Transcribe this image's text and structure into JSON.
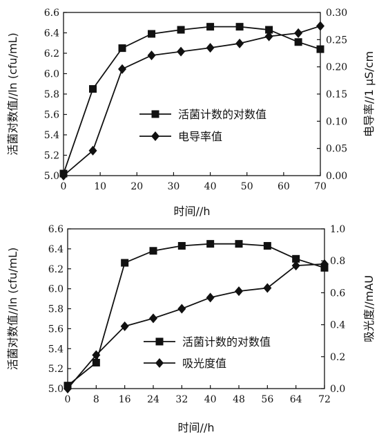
{
  "chart_data": [
    {
      "type": "line",
      "xlabel": "时间//h",
      "ylabel_left": "活菌对数值//ln (cfu/mL)",
      "ylabel_right": "电导率//1 μS/cm",
      "x_ticks": [
        0,
        10,
        20,
        30,
        40,
        50,
        60,
        70
      ],
      "y_left_ticks": [
        "5.0",
        "5.2",
        "5.4",
        "5.6",
        "5.8",
        "6.0",
        "6.2",
        "6.4",
        "6.6"
      ],
      "y_right_ticks": [
        "0.00",
        "0.05",
        "0.10",
        "0.15",
        "0.20",
        "0.25",
        "0.30"
      ],
      "xlim": [
        0,
        70
      ],
      "ylim_left": [
        5.0,
        6.6
      ],
      "ylim_right": [
        0.0,
        0.3
      ],
      "legend_position": "center-right",
      "series": [
        {
          "name": "活菌计数的对数值",
          "axis": "left",
          "marker": "square",
          "x": [
            0,
            8,
            16,
            24,
            32,
            40,
            48,
            56,
            64,
            70
          ],
          "y": [
            5.02,
            5.85,
            6.25,
            6.39,
            6.43,
            6.46,
            6.46,
            6.43,
            6.31,
            6.24
          ]
        },
        {
          "name": "电导率值",
          "axis": "right",
          "marker": "diamond",
          "x": [
            0,
            8,
            16,
            24,
            32,
            40,
            48,
            56,
            64,
            70
          ],
          "y": [
            0.0,
            0.046,
            0.196,
            0.221,
            0.228,
            0.235,
            0.243,
            0.256,
            0.262,
            0.275
          ]
        }
      ]
    },
    {
      "type": "line",
      "xlabel": "时间//h",
      "ylabel_left": "活菌对数值//ln (cfu/mL)",
      "ylabel_right": "吸光度//mAU",
      "x_ticks": [
        0,
        8,
        16,
        24,
        32,
        40,
        48,
        56,
        64,
        72
      ],
      "y_left_ticks": [
        "5.0",
        "5.2",
        "5.4",
        "5.6",
        "5.8",
        "6.0",
        "6.2",
        "6.4",
        "6.6"
      ],
      "y_right_ticks": [
        "0.0",
        "0.2",
        "0.4",
        "0.6",
        "0.8",
        "1.0"
      ],
      "xlim": [
        0,
        72
      ],
      "ylim_left": [
        5.0,
        6.6
      ],
      "ylim_right": [
        0.0,
        1.0
      ],
      "legend_position": "bottom-right",
      "series": [
        {
          "name": "活菌计数的对数值",
          "axis": "left",
          "marker": "square",
          "x": [
            0,
            8,
            16,
            24,
            32,
            40,
            48,
            56,
            64,
            72
          ],
          "y": [
            5.03,
            5.26,
            6.26,
            6.38,
            6.43,
            6.45,
            6.45,
            6.43,
            6.3,
            6.21
          ]
        },
        {
          "name": "吸光度值",
          "axis": "right",
          "marker": "diamond",
          "x": [
            0,
            8,
            16,
            24,
            32,
            40,
            48,
            56,
            64,
            72
          ],
          "y": [
            0.0,
            0.21,
            0.39,
            0.44,
            0.5,
            0.57,
            0.61,
            0.63,
            0.77,
            0.78
          ]
        }
      ]
    }
  ]
}
